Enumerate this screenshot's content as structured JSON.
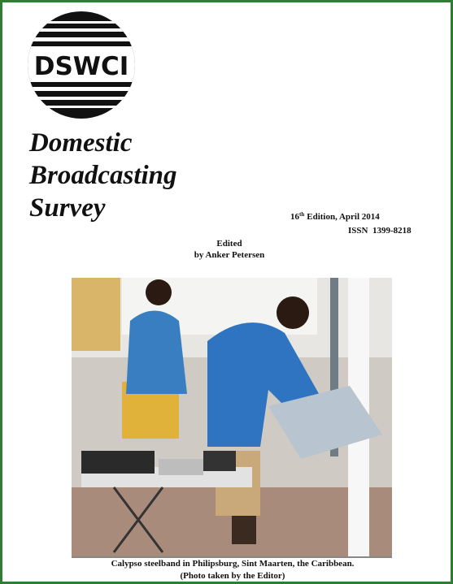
{
  "logo": {
    "text": "DSWCI"
  },
  "title": {
    "lines": [
      "Domestic",
      "Broadcasting",
      "Survey"
    ]
  },
  "edition": {
    "number": "16",
    "suffix": "th",
    "rest": "Edition, April 2014"
  },
  "issn": "ISSN  1399-8218",
  "editor": {
    "line1": "Edited",
    "line2": "by Anker Petersen"
  },
  "caption": {
    "line1": "Calypso steelband in Philipsburg, Sint Maarten, the Caribbean.",
    "line2": "(Photo taken by the Editor)"
  }
}
